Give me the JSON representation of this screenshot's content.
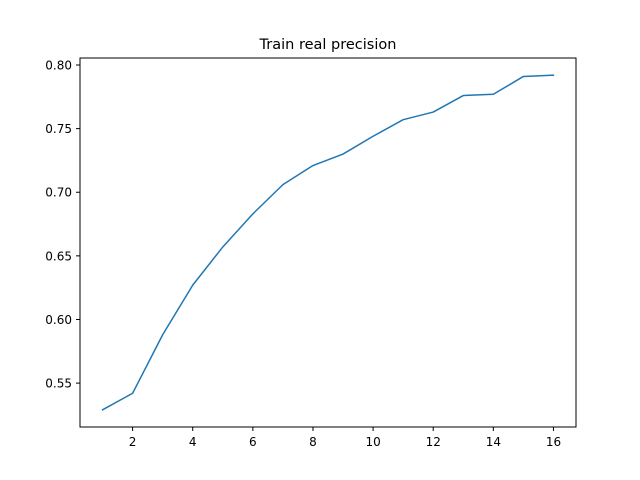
{
  "chart_data": {
    "type": "line",
    "title": "Train real precision",
    "xlabel": "",
    "ylabel": "",
    "xlim": [
      0.25,
      16.75
    ],
    "ylim": [
      0.5155,
      0.8055
    ],
    "x_ticks": [
      2,
      4,
      6,
      8,
      10,
      12,
      14,
      16
    ],
    "x_tick_labels": [
      "2",
      "4",
      "6",
      "8",
      "10",
      "12",
      "14",
      "16"
    ],
    "y_ticks": [
      0.55,
      0.6,
      0.65,
      0.7,
      0.75,
      0.8
    ],
    "y_tick_labels": [
      "0.55",
      "0.60",
      "0.65",
      "0.70",
      "0.75",
      "0.80"
    ],
    "grid": false,
    "legend": "none",
    "series": [
      {
        "color": "#1f77b4",
        "x": [
          1,
          2,
          3,
          4,
          5,
          6,
          7,
          8,
          9,
          10,
          11,
          12,
          13,
          14,
          15,
          16
        ],
        "values": [
          0.529,
          0.542,
          0.588,
          0.627,
          0.657,
          0.683,
          0.706,
          0.721,
          0.73,
          0.744,
          0.757,
          0.763,
          0.776,
          0.777,
          0.791,
          0.792
        ]
      }
    ]
  }
}
